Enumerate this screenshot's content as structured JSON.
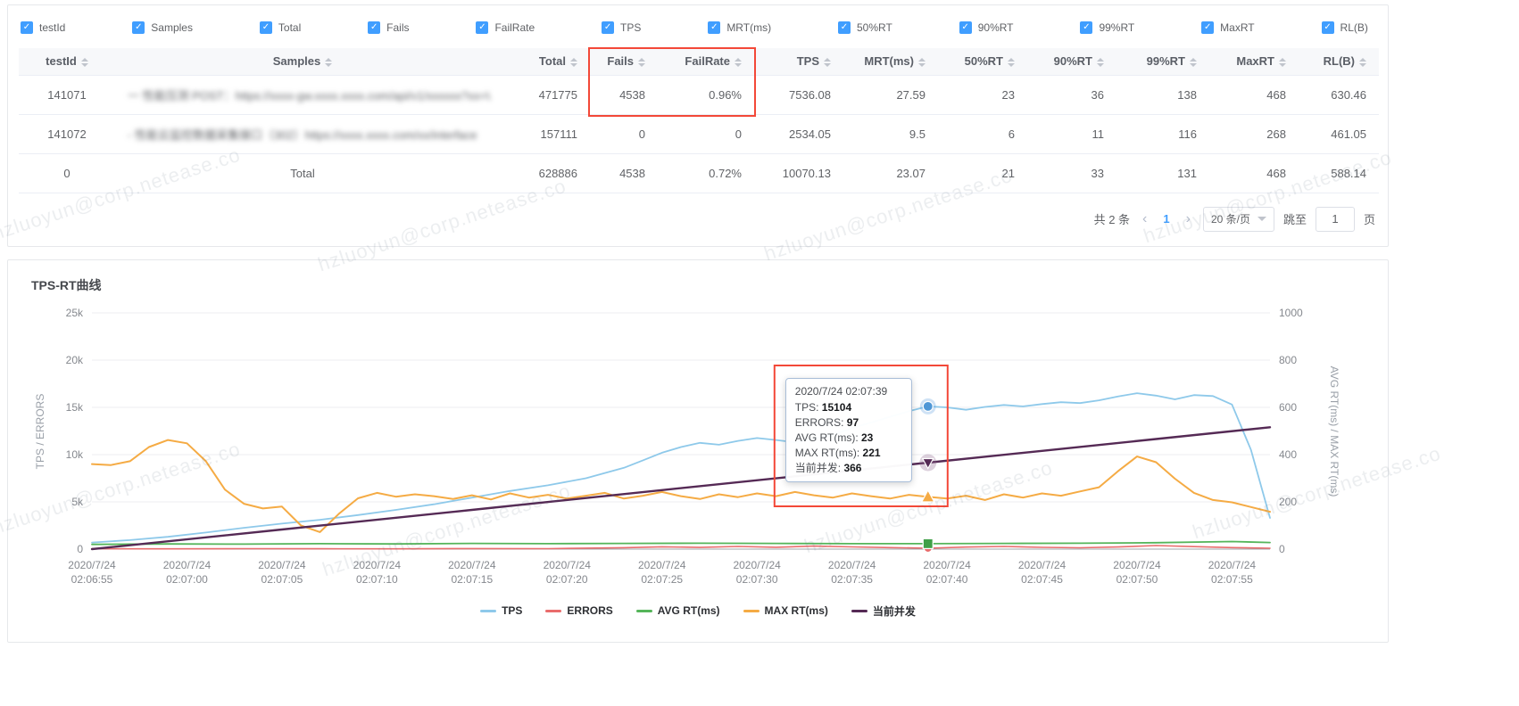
{
  "watermark": "hzluoyun@corp.netease.co",
  "column_toggles": [
    "testId",
    "Samples",
    "Total",
    "Fails",
    "FailRate",
    "TPS",
    "MRT(ms)",
    "50%RT",
    "90%RT",
    "99%RT",
    "MaxRT",
    "RL(B)"
  ],
  "table": {
    "headers": [
      "testId",
      "Samples",
      "Total",
      "Fails",
      "FailRate",
      "TPS",
      "MRT(ms)",
      "50%RT",
      "90%RT",
      "99%RT",
      "MaxRT",
      "RL(B)"
    ],
    "rows": [
      {
        "blur_sample": true,
        "cells": [
          "141071",
          "一 性能压测 POST：https://xxxx-gw.xxxx.xxxx.com/api/v1/xxxxxx?xx=WebC",
          "471775",
          "4538",
          "0.96%",
          "7536.08",
          "27.59",
          "23",
          "36",
          "138",
          "468",
          "630.46"
        ]
      },
      {
        "blur_sample": true,
        "cells": [
          "141072",
          "- 性能云监控数据采集接口（302）https://xxxx.xxxx.com/xx/interface",
          "157111",
          "0",
          "0",
          "2534.05",
          "9.5",
          "6",
          "11",
          "116",
          "268",
          "461.05"
        ]
      },
      {
        "blur_sample": false,
        "cells": [
          "0",
          "Total",
          "628886",
          "4538",
          "0.72%",
          "10070.13",
          "23.07",
          "21",
          "33",
          "131",
          "468",
          "588.14"
        ]
      }
    ]
  },
  "pagination": {
    "total_label": "共 2 条",
    "current_page": "1",
    "page_size": "20 条/页",
    "jump_label": "跳至",
    "jump_value": "1",
    "page_unit": "页"
  },
  "chart_data": {
    "type": "line",
    "title": "TPS-RT曲线",
    "grid": true,
    "legend_position": "bottom",
    "left_axis": {
      "label": "TPS / ERRORS",
      "min": 0,
      "max": 25000,
      "ticks": [
        "0",
        "5k",
        "10k",
        "15k",
        "20k",
        "25k"
      ]
    },
    "right_axis": {
      "label": "AVG RT(ms) / MAX RT(ms)",
      "min": 0,
      "max": 1000,
      "ticks": [
        "0",
        "200",
        "400",
        "600",
        "800",
        "1000"
      ]
    },
    "x_ticks": [
      {
        "date": "2020/7/24",
        "time": "02:06:55"
      },
      {
        "date": "2020/7/24",
        "time": "02:07:00"
      },
      {
        "date": "2020/7/24",
        "time": "02:07:05"
      },
      {
        "date": "2020/7/24",
        "time": "02:07:10"
      },
      {
        "date": "2020/7/24",
        "time": "02:07:15"
      },
      {
        "date": "2020/7/24",
        "time": "02:07:20"
      },
      {
        "date": "2020/7/24",
        "time": "02:07:25"
      },
      {
        "date": "2020/7/24",
        "time": "02:07:30"
      },
      {
        "date": "2020/7/24",
        "time": "02:07:35"
      },
      {
        "date": "2020/7/24",
        "time": "02:07:40"
      },
      {
        "date": "2020/7/24",
        "time": "02:07:45"
      },
      {
        "date": "2020/7/24",
        "time": "02:07:50"
      },
      {
        "date": "2020/7/24",
        "time": "02:07:55"
      }
    ],
    "x_max_seconds": 62,
    "series": [
      {
        "name": "TPS",
        "axis": "left",
        "color": "#8ec9ea",
        "width": 1.8,
        "points": [
          [
            0,
            700
          ],
          [
            2,
            950
          ],
          [
            4,
            1300
          ],
          [
            6,
            1750
          ],
          [
            8,
            2250
          ],
          [
            10,
            2700
          ],
          [
            12,
            3100
          ],
          [
            14,
            3600
          ],
          [
            16,
            4150
          ],
          [
            18,
            4750
          ],
          [
            20,
            5450
          ],
          [
            22,
            6150
          ],
          [
            24,
            6750
          ],
          [
            26,
            7500
          ],
          [
            28,
            8600
          ],
          [
            29,
            9400
          ],
          [
            30,
            10200
          ],
          [
            31,
            10800
          ],
          [
            32,
            11250
          ],
          [
            33,
            11050
          ],
          [
            34,
            11450
          ],
          [
            35,
            11750
          ],
          [
            36,
            11550
          ],
          [
            37,
            11300
          ],
          [
            38,
            11700
          ],
          [
            39,
            12100
          ],
          [
            40,
            12800
          ],
          [
            41,
            13400
          ],
          [
            42,
            14000
          ],
          [
            43,
            14600
          ],
          [
            44,
            15104
          ],
          [
            45,
            15000
          ],
          [
            46,
            14750
          ],
          [
            47,
            15050
          ],
          [
            48,
            15250
          ],
          [
            49,
            15100
          ],
          [
            50,
            15350
          ],
          [
            51,
            15550
          ],
          [
            52,
            15450
          ],
          [
            53,
            15750
          ],
          [
            54,
            16150
          ],
          [
            55,
            16500
          ],
          [
            56,
            16250
          ],
          [
            57,
            15850
          ],
          [
            58,
            16300
          ],
          [
            59,
            16200
          ],
          [
            60,
            15300
          ],
          [
            61,
            10500
          ],
          [
            62,
            3300
          ]
        ]
      },
      {
        "name": "ERRORS",
        "axis": "left",
        "color": "#e96c6c",
        "width": 1.6,
        "points": [
          [
            0,
            40
          ],
          [
            4,
            30
          ],
          [
            8,
            50
          ],
          [
            12,
            40
          ],
          [
            16,
            30
          ],
          [
            20,
            60
          ],
          [
            24,
            50
          ],
          [
            28,
            150
          ],
          [
            30,
            250
          ],
          [
            32,
            180
          ],
          [
            34,
            280
          ],
          [
            36,
            200
          ],
          [
            38,
            320
          ],
          [
            40,
            240
          ],
          [
            42,
            160
          ],
          [
            44,
            97
          ],
          [
            46,
            220
          ],
          [
            48,
            280
          ],
          [
            50,
            190
          ],
          [
            52,
            140
          ],
          [
            54,
            230
          ],
          [
            56,
            380
          ],
          [
            58,
            260
          ],
          [
            60,
            160
          ],
          [
            62,
            90
          ]
        ]
      },
      {
        "name": "AVG RT(ms)",
        "axis": "right",
        "color": "#55b55a",
        "width": 1.8,
        "points": [
          [
            0,
            20
          ],
          [
            4,
            22
          ],
          [
            8,
            21
          ],
          [
            12,
            23
          ],
          [
            16,
            22
          ],
          [
            20,
            24
          ],
          [
            24,
            23
          ],
          [
            28,
            24
          ],
          [
            32,
            25
          ],
          [
            36,
            24
          ],
          [
            40,
            23
          ],
          [
            44,
            23
          ],
          [
            48,
            24
          ],
          [
            52,
            25
          ],
          [
            56,
            27
          ],
          [
            60,
            32
          ],
          [
            62,
            28
          ]
        ]
      },
      {
        "name": "MAX RT(ms)",
        "axis": "right",
        "color": "#f5ab44",
        "width": 2,
        "points": [
          [
            0,
            360
          ],
          [
            1,
            356
          ],
          [
            2,
            372
          ],
          [
            3,
            432
          ],
          [
            4,
            462
          ],
          [
            5,
            448
          ],
          [
            6,
            372
          ],
          [
            7,
            252
          ],
          [
            8,
            192
          ],
          [
            9,
            172
          ],
          [
            10,
            180
          ],
          [
            11,
            100
          ],
          [
            12,
            72
          ],
          [
            13,
            150
          ],
          [
            14,
            215
          ],
          [
            15,
            238
          ],
          [
            16,
            222
          ],
          [
            17,
            232
          ],
          [
            18,
            224
          ],
          [
            19,
            212
          ],
          [
            20,
            228
          ],
          [
            21,
            210
          ],
          [
            22,
            236
          ],
          [
            23,
            218
          ],
          [
            24,
            230
          ],
          [
            25,
            214
          ],
          [
            26,
            226
          ],
          [
            27,
            238
          ],
          [
            28,
            214
          ],
          [
            29,
            226
          ],
          [
            30,
            242
          ],
          [
            31,
            224
          ],
          [
            32,
            212
          ],
          [
            33,
            232
          ],
          [
            34,
            220
          ],
          [
            35,
            236
          ],
          [
            36,
            224
          ],
          [
            37,
            242
          ],
          [
            38,
            228
          ],
          [
            39,
            218
          ],
          [
            40,
            236
          ],
          [
            41,
            224
          ],
          [
            42,
            214
          ],
          [
            43,
            230
          ],
          [
            44,
            221
          ],
          [
            45,
            214
          ],
          [
            46,
            226
          ],
          [
            47,
            208
          ],
          [
            48,
            232
          ],
          [
            49,
            218
          ],
          [
            50,
            236
          ],
          [
            51,
            226
          ],
          [
            52,
            244
          ],
          [
            53,
            262
          ],
          [
            54,
            330
          ],
          [
            55,
            392
          ],
          [
            56,
            368
          ],
          [
            57,
            298
          ],
          [
            58,
            238
          ],
          [
            59,
            208
          ],
          [
            60,
            198
          ],
          [
            61,
            178
          ],
          [
            62,
            158
          ]
        ]
      },
      {
        "name": "当前并发",
        "axis": "right",
        "color": "#552a55",
        "width": 2.4,
        "points": [
          [
            0,
            0
          ],
          [
            10,
            83
          ],
          [
            20,
            166
          ],
          [
            30,
            250
          ],
          [
            40,
            333
          ],
          [
            44,
            366
          ],
          [
            50,
            416
          ],
          [
            56,
            466
          ],
          [
            62,
            516
          ]
        ]
      }
    ],
    "tooltip": {
      "time": "2020/7/24 02:07:39",
      "t": 44,
      "entries": [
        {
          "label": "TPS",
          "value": "15104",
          "v": 15104,
          "axis": "left",
          "marker": "circle",
          "color": "#4f97d6"
        },
        {
          "label": "ERRORS",
          "value": "97",
          "v": 97,
          "axis": "left",
          "marker": "dot",
          "color": "#e96c6c"
        },
        {
          "label": "AVG RT(ms)",
          "value": "23",
          "v": 23,
          "axis": "right",
          "marker": "square",
          "color": "#3fa047"
        },
        {
          "label": "MAX RT(ms)",
          "value": "221",
          "v": 221,
          "axis": "right",
          "marker": "triangle-up",
          "color": "#f5ab44"
        },
        {
          "label": "当前并发",
          "value": "366",
          "v": 366,
          "axis": "right",
          "marker": "triangle-down",
          "color": "#552a55"
        }
      ]
    }
  }
}
